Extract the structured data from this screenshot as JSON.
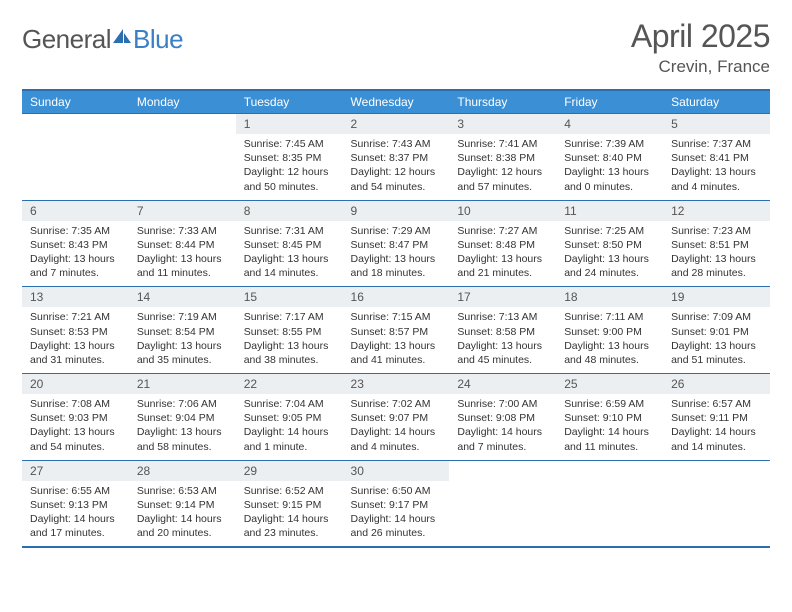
{
  "logo": {
    "part1": "General",
    "part2": "Blue"
  },
  "title": "April 2025",
  "location": "Crevin, France",
  "header_color": "#3b8fd4",
  "border_color": "#2b6fb0",
  "daynum_bg": "#eceff1",
  "logo_blue": "#3b7fc4",
  "weekdays": [
    "Sunday",
    "Monday",
    "Tuesday",
    "Wednesday",
    "Thursday",
    "Friday",
    "Saturday"
  ],
  "weeks": [
    [
      null,
      null,
      {
        "n": "1",
        "sr": "Sunrise: 7:45 AM",
        "ss": "Sunset: 8:35 PM",
        "dl": "Daylight: 12 hours and 50 minutes."
      },
      {
        "n": "2",
        "sr": "Sunrise: 7:43 AM",
        "ss": "Sunset: 8:37 PM",
        "dl": "Daylight: 12 hours and 54 minutes."
      },
      {
        "n": "3",
        "sr": "Sunrise: 7:41 AM",
        "ss": "Sunset: 8:38 PM",
        "dl": "Daylight: 12 hours and 57 minutes."
      },
      {
        "n": "4",
        "sr": "Sunrise: 7:39 AM",
        "ss": "Sunset: 8:40 PM",
        "dl": "Daylight: 13 hours and 0 minutes."
      },
      {
        "n": "5",
        "sr": "Sunrise: 7:37 AM",
        "ss": "Sunset: 8:41 PM",
        "dl": "Daylight: 13 hours and 4 minutes."
      }
    ],
    [
      {
        "n": "6",
        "sr": "Sunrise: 7:35 AM",
        "ss": "Sunset: 8:43 PM",
        "dl": "Daylight: 13 hours and 7 minutes."
      },
      {
        "n": "7",
        "sr": "Sunrise: 7:33 AM",
        "ss": "Sunset: 8:44 PM",
        "dl": "Daylight: 13 hours and 11 minutes."
      },
      {
        "n": "8",
        "sr": "Sunrise: 7:31 AM",
        "ss": "Sunset: 8:45 PM",
        "dl": "Daylight: 13 hours and 14 minutes."
      },
      {
        "n": "9",
        "sr": "Sunrise: 7:29 AM",
        "ss": "Sunset: 8:47 PM",
        "dl": "Daylight: 13 hours and 18 minutes."
      },
      {
        "n": "10",
        "sr": "Sunrise: 7:27 AM",
        "ss": "Sunset: 8:48 PM",
        "dl": "Daylight: 13 hours and 21 minutes."
      },
      {
        "n": "11",
        "sr": "Sunrise: 7:25 AM",
        "ss": "Sunset: 8:50 PM",
        "dl": "Daylight: 13 hours and 24 minutes."
      },
      {
        "n": "12",
        "sr": "Sunrise: 7:23 AM",
        "ss": "Sunset: 8:51 PM",
        "dl": "Daylight: 13 hours and 28 minutes."
      }
    ],
    [
      {
        "n": "13",
        "sr": "Sunrise: 7:21 AM",
        "ss": "Sunset: 8:53 PM",
        "dl": "Daylight: 13 hours and 31 minutes."
      },
      {
        "n": "14",
        "sr": "Sunrise: 7:19 AM",
        "ss": "Sunset: 8:54 PM",
        "dl": "Daylight: 13 hours and 35 minutes."
      },
      {
        "n": "15",
        "sr": "Sunrise: 7:17 AM",
        "ss": "Sunset: 8:55 PM",
        "dl": "Daylight: 13 hours and 38 minutes."
      },
      {
        "n": "16",
        "sr": "Sunrise: 7:15 AM",
        "ss": "Sunset: 8:57 PM",
        "dl": "Daylight: 13 hours and 41 minutes."
      },
      {
        "n": "17",
        "sr": "Sunrise: 7:13 AM",
        "ss": "Sunset: 8:58 PM",
        "dl": "Daylight: 13 hours and 45 minutes."
      },
      {
        "n": "18",
        "sr": "Sunrise: 7:11 AM",
        "ss": "Sunset: 9:00 PM",
        "dl": "Daylight: 13 hours and 48 minutes."
      },
      {
        "n": "19",
        "sr": "Sunrise: 7:09 AM",
        "ss": "Sunset: 9:01 PM",
        "dl": "Daylight: 13 hours and 51 minutes."
      }
    ],
    [
      {
        "n": "20",
        "sr": "Sunrise: 7:08 AM",
        "ss": "Sunset: 9:03 PM",
        "dl": "Daylight: 13 hours and 54 minutes."
      },
      {
        "n": "21",
        "sr": "Sunrise: 7:06 AM",
        "ss": "Sunset: 9:04 PM",
        "dl": "Daylight: 13 hours and 58 minutes."
      },
      {
        "n": "22",
        "sr": "Sunrise: 7:04 AM",
        "ss": "Sunset: 9:05 PM",
        "dl": "Daylight: 14 hours and 1 minute."
      },
      {
        "n": "23",
        "sr": "Sunrise: 7:02 AM",
        "ss": "Sunset: 9:07 PM",
        "dl": "Daylight: 14 hours and 4 minutes."
      },
      {
        "n": "24",
        "sr": "Sunrise: 7:00 AM",
        "ss": "Sunset: 9:08 PM",
        "dl": "Daylight: 14 hours and 7 minutes."
      },
      {
        "n": "25",
        "sr": "Sunrise: 6:59 AM",
        "ss": "Sunset: 9:10 PM",
        "dl": "Daylight: 14 hours and 11 minutes."
      },
      {
        "n": "26",
        "sr": "Sunrise: 6:57 AM",
        "ss": "Sunset: 9:11 PM",
        "dl": "Daylight: 14 hours and 14 minutes."
      }
    ],
    [
      {
        "n": "27",
        "sr": "Sunrise: 6:55 AM",
        "ss": "Sunset: 9:13 PM",
        "dl": "Daylight: 14 hours and 17 minutes."
      },
      {
        "n": "28",
        "sr": "Sunrise: 6:53 AM",
        "ss": "Sunset: 9:14 PM",
        "dl": "Daylight: 14 hours and 20 minutes."
      },
      {
        "n": "29",
        "sr": "Sunrise: 6:52 AM",
        "ss": "Sunset: 9:15 PM",
        "dl": "Daylight: 14 hours and 23 minutes."
      },
      {
        "n": "30",
        "sr": "Sunrise: 6:50 AM",
        "ss": "Sunset: 9:17 PM",
        "dl": "Daylight: 14 hours and 26 minutes."
      },
      null,
      null,
      null
    ]
  ]
}
